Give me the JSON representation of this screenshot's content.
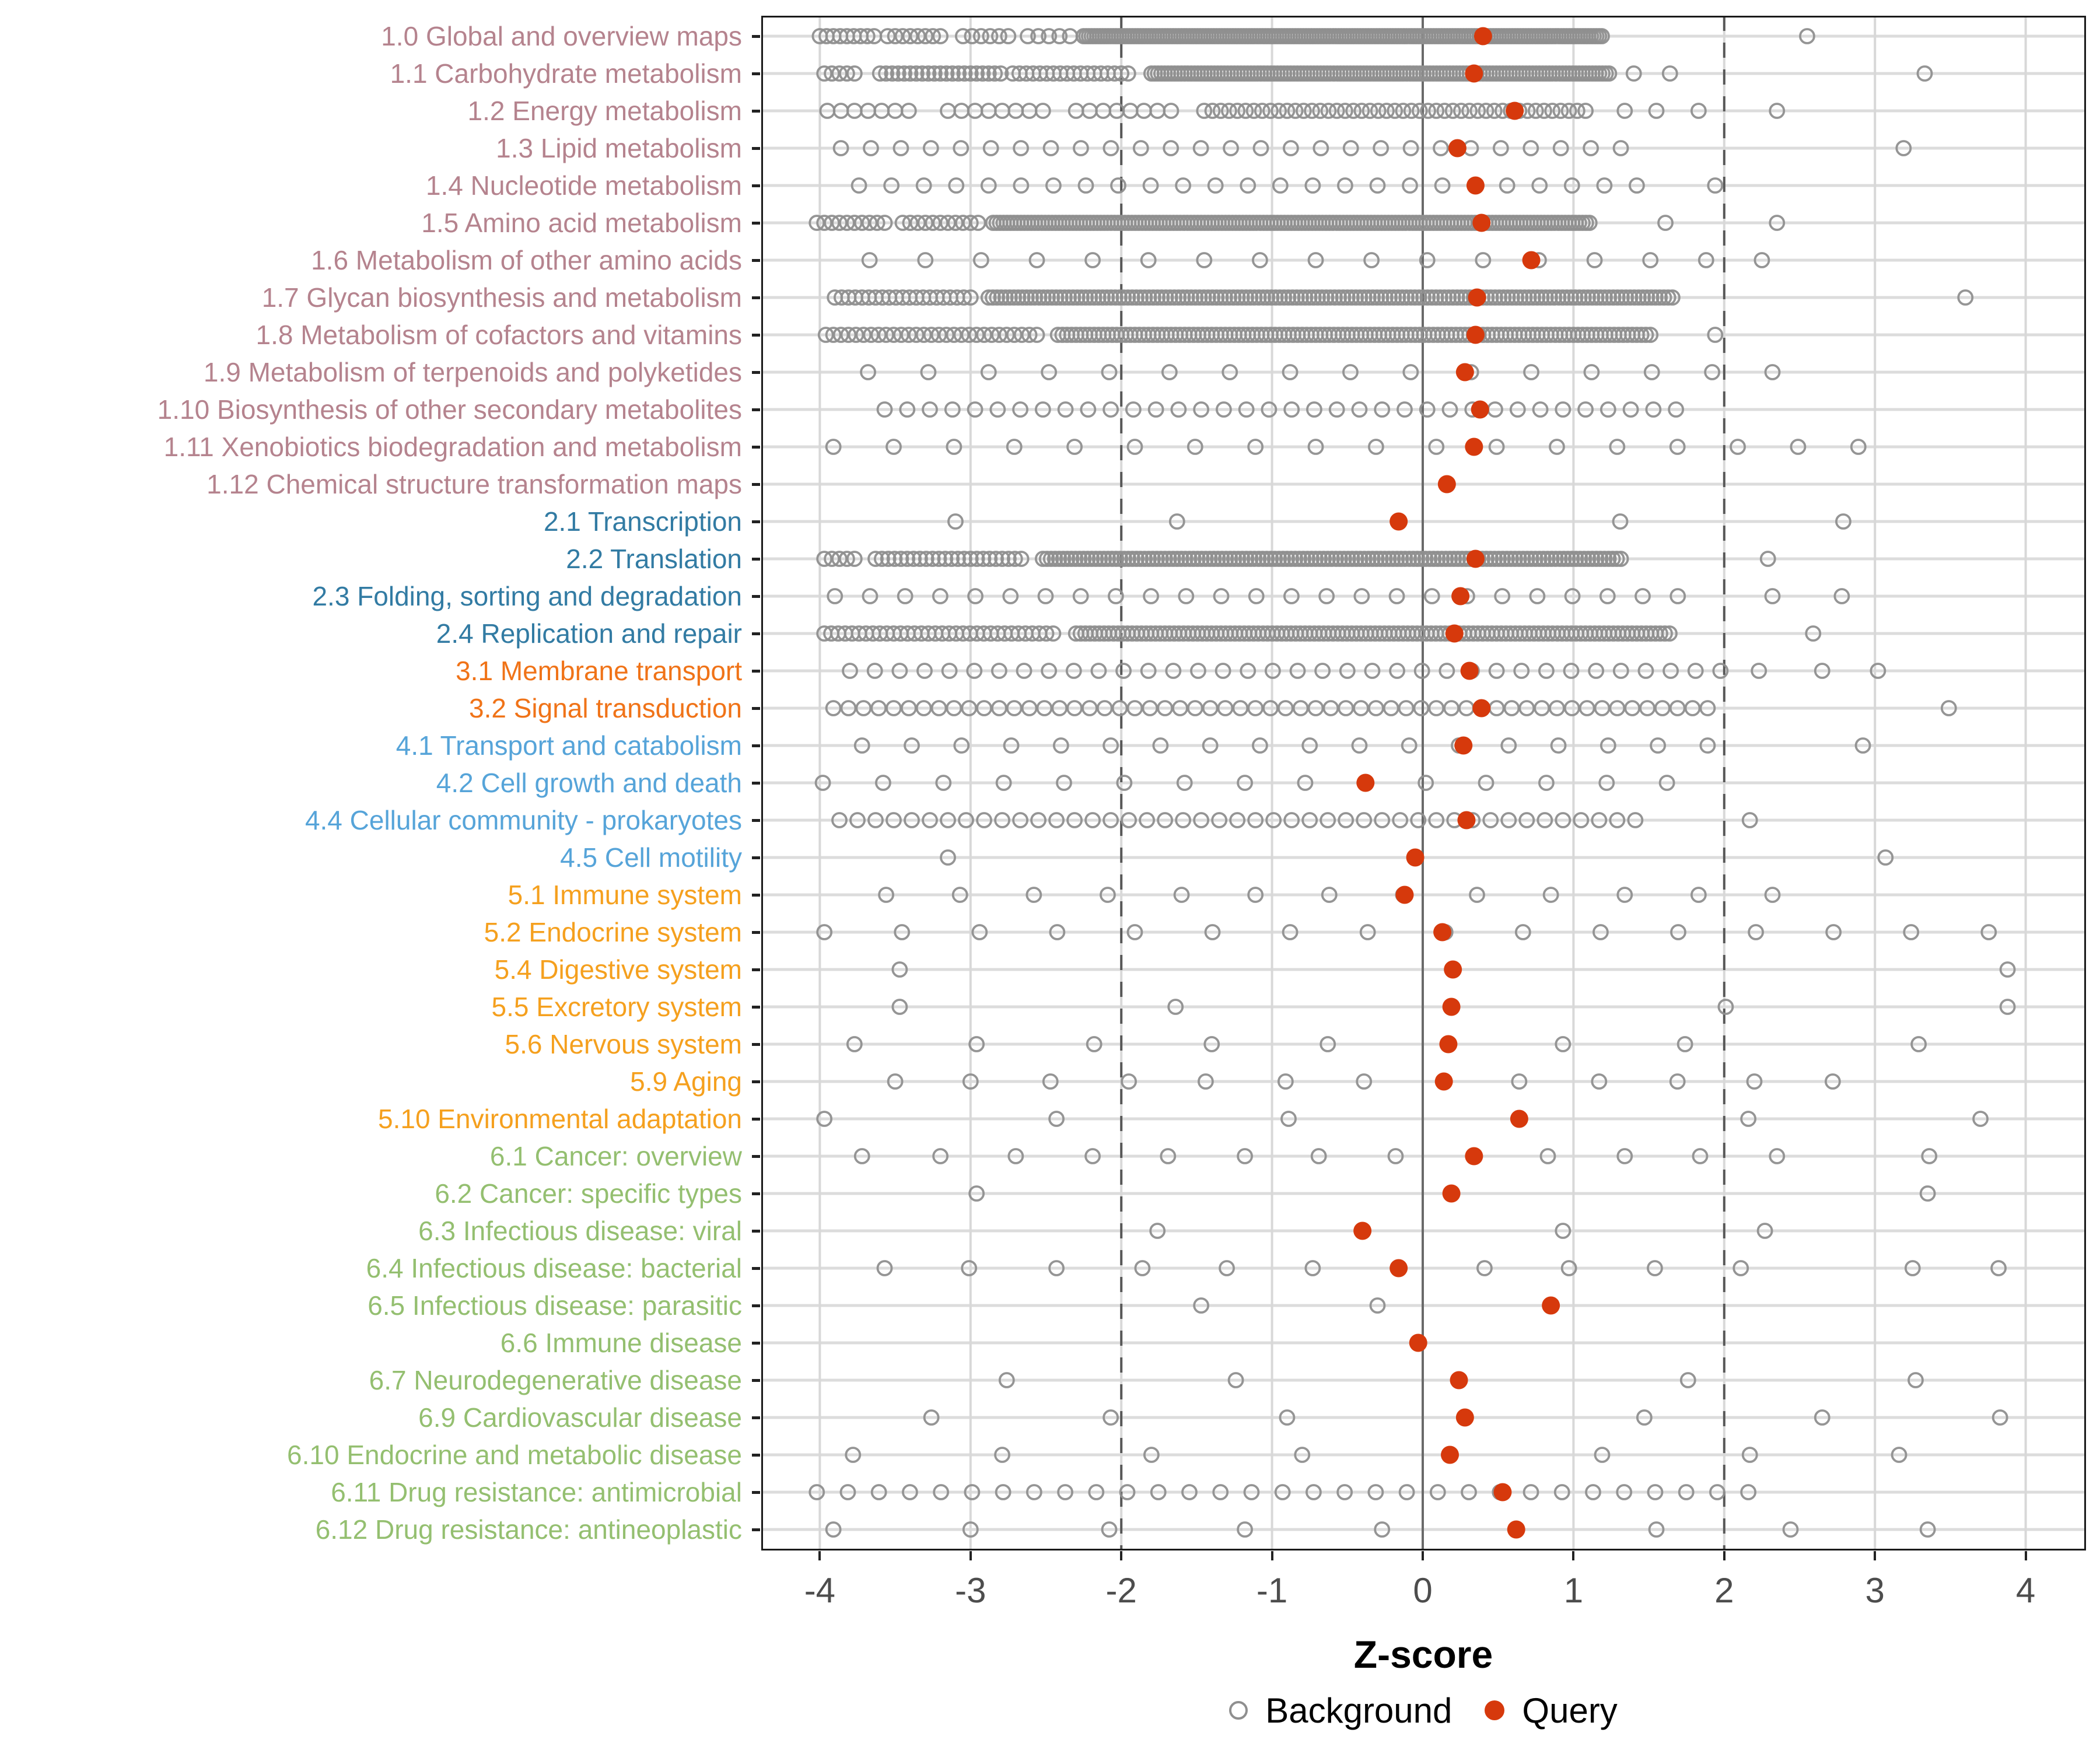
{
  "chart_data": {
    "type": "scatter",
    "title": "",
    "xlabel": "Z-score",
    "ylabel": "",
    "xlim": [
      -4.4,
      4.4
    ],
    "xticks": [
      -4,
      -3,
      -2,
      -1,
      0,
      1,
      2,
      3,
      4
    ],
    "ref_lines": {
      "solid_at": 0,
      "dashed_at": [
        -2,
        2
      ]
    },
    "grid": "on",
    "legend_position": "bottom",
    "legend": [
      {
        "label": "Background",
        "marker": "open-circle",
        "color": "#8f8f8f"
      },
      {
        "label": "Query",
        "marker": "filled-circle",
        "color": "#d6390c"
      }
    ],
    "colors": {
      "query_dot": "#d6390c",
      "background_circle": "#8f8f8f",
      "grid_horizontal": "#dcdcdc",
      "grid_vertical": "#d8d8d8",
      "zero_line": "#6a6a6a",
      "dashed_line": "#585858",
      "panel_border": "#1a1a1a",
      "tick_label": "#4d4d4d",
      "axis_tick": "#222222"
    },
    "group_colors": {
      "g1": "#b5838e",
      "g2": "#327ba3",
      "g3": "#f07318",
      "g4": "#56a4d9",
      "g5": "#f5a01e",
      "g6": "#94bf70"
    },
    "rows": [
      {
        "label": "1.0 Global and overview maps",
        "group": "g1",
        "query": 0.4,
        "bg_runs": [
          [
            -4.0,
            -3.62,
            0.045
          ],
          [
            -3.55,
            -3.2,
            0.05
          ],
          [
            -3.05,
            -2.7,
            0.06
          ],
          [
            -2.62,
            -2.3,
            0.07
          ],
          [
            -2.25,
            1.2,
            0.018
          ]
        ],
        "bg_points": [
          2.55
        ]
      },
      {
        "label": "1.1 Carbohydrate metabolism",
        "group": "g1",
        "query": 0.34,
        "bg_runs": [
          [
            -3.97,
            -3.75,
            0.05
          ],
          [
            -3.6,
            -2.8,
            0.04
          ],
          [
            -2.72,
            -1.95,
            0.045
          ],
          [
            -1.8,
            1.25,
            0.022
          ]
        ],
        "bg_points": [
          1.4,
          1.64,
          3.33
        ]
      },
      {
        "label": "1.2 Energy metabolism",
        "group": "g1",
        "query": 0.61,
        "bg_runs": [
          [
            -3.95,
            -3.4,
            0.09
          ],
          [
            -3.15,
            -2.5,
            0.09
          ],
          [
            -2.3,
            -1.65,
            0.09
          ],
          [
            -1.45,
            1.08,
            0.055
          ]
        ],
        "bg_points": [
          1.34,
          1.55,
          1.83,
          2.35
        ]
      },
      {
        "label": "1.3 Lipid metabolism",
        "group": "g1",
        "query": 0.23,
        "bg_runs": [
          [
            -3.86,
            1.32,
            0.199
          ]
        ],
        "bg_points": [
          3.19
        ]
      },
      {
        "label": "1.4 Nucleotide metabolism",
        "group": "g1",
        "query": 0.35,
        "bg_runs": [
          [
            -3.74,
            1.61,
            0.215
          ]
        ],
        "bg_points": [
          1.94
        ]
      },
      {
        "label": "1.5 Amino acid metabolism",
        "group": "g1",
        "query": 0.39,
        "bg_runs": [
          [
            -4.02,
            -3.55,
            0.05
          ],
          [
            -3.45,
            -2.95,
            0.05
          ],
          [
            -2.85,
            1.12,
            0.023
          ]
        ],
        "bg_points": [
          1.61,
          2.35
        ]
      },
      {
        "label": "1.6 Metabolism of other amino acids",
        "group": "g1",
        "query": 0.72,
        "bg_runs": [
          [
            -3.67,
            2.61,
            0.37
          ]
        ],
        "bg_points": []
      },
      {
        "label": "1.7 Glycan biosynthesis and metabolism",
        "group": "g1",
        "query": 0.36,
        "bg_runs": [
          [
            -3.9,
            -3.0,
            0.045
          ],
          [
            -2.88,
            1.67,
            0.028
          ]
        ],
        "bg_points": [
          3.6
        ]
      },
      {
        "label": "1.8 Metabolism of cofactors and vitamins",
        "group": "g1",
        "query": 0.35,
        "bg_runs": [
          [
            -3.96,
            -2.52,
            0.05
          ],
          [
            -2.42,
            1.51,
            0.03
          ]
        ],
        "bg_points": [
          1.94
        ]
      },
      {
        "label": "1.9 Metabolism of terpenoids and polyketides",
        "group": "g1",
        "query": 0.28,
        "bg_runs": [
          [
            -3.68,
            2.65,
            0.4
          ]
        ],
        "bg_points": []
      },
      {
        "label": "1.10 Biosynthesis of other secondary metabolites",
        "group": "g1",
        "query": 0.38,
        "bg_runs": [
          [
            -3.57,
            1.72,
            0.15
          ]
        ],
        "bg_points": []
      },
      {
        "label": "1.11 Xenobiotics biodegradation and metabolism",
        "group": "g1",
        "query": 0.34,
        "bg_runs": [
          [
            -3.91,
            3.02,
            0.4
          ]
        ],
        "bg_points": []
      },
      {
        "label": "1.12 Chemical structure transformation maps",
        "group": "g1",
        "query": 0.16,
        "bg_runs": [],
        "bg_points": []
      },
      {
        "label": "2.1 Transcription",
        "group": "g2",
        "query": -0.16,
        "bg_runs": [],
        "bg_points": [
          -3.1,
          -1.63,
          1.31,
          2.79
        ]
      },
      {
        "label": "2.2 Translation",
        "group": "g2",
        "query": 0.35,
        "bg_runs": [
          [
            -3.97,
            -3.77,
            0.05
          ],
          [
            -3.63,
            -2.65,
            0.042
          ],
          [
            -2.52,
            1.32,
            0.027
          ]
        ],
        "bg_points": [
          2.29
        ]
      },
      {
        "label": "2.3 Folding, sorting and degradation",
        "group": "g2",
        "query": 0.25,
        "bg_runs": [
          [
            -3.9,
            1.83,
            0.233
          ]
        ],
        "bg_points": [
          2.32,
          2.78
        ]
      },
      {
        "label": "2.4 Replication and repair",
        "group": "g2",
        "query": 0.21,
        "bg_runs": [
          [
            -3.97,
            -2.42,
            0.046
          ],
          [
            -2.3,
            1.66,
            0.031
          ]
        ],
        "bg_points": [
          2.59
        ]
      },
      {
        "label": "3.1 Membrane transport",
        "group": "g3",
        "query": 0.31,
        "bg_runs": [
          [
            -3.8,
            2.0,
            0.165
          ]
        ],
        "bg_points": [
          2.23,
          2.65,
          3.02
        ]
      },
      {
        "label": "3.2 Signal transduction",
        "group": "g3",
        "query": 0.39,
        "bg_runs": [
          [
            -3.91,
            1.89,
            0.1
          ]
        ],
        "bg_points": [
          3.49
        ]
      },
      {
        "label": "4.1 Transport and catabolism",
        "group": "g4",
        "query": 0.27,
        "bg_runs": [
          [
            -3.72,
            1.93,
            0.33
          ]
        ],
        "bg_points": [
          2.92
        ]
      },
      {
        "label": "4.2 Cell growth and death",
        "group": "g4",
        "query": -0.38,
        "bg_runs": [
          [
            -3.98,
            2.0,
            0.4
          ]
        ],
        "bg_points": []
      },
      {
        "label": "4.4 Cellular community - prokaryotes",
        "group": "g4",
        "query": 0.29,
        "bg_runs": [
          [
            -3.87,
            1.5,
            0.12
          ]
        ],
        "bg_points": [
          2.17
        ]
      },
      {
        "label": "4.5 Cell motility",
        "group": "g4",
        "query": -0.05,
        "bg_runs": [],
        "bg_points": [
          -3.15,
          3.07
        ]
      },
      {
        "label": "5.1 Immune system",
        "group": "g5",
        "query": -0.12,
        "bg_runs": [
          [
            -3.56,
            2.34,
            0.49
          ]
        ],
        "bg_points": []
      },
      {
        "label": "5.2 Endocrine system",
        "group": "g5",
        "query": 0.13,
        "bg_runs": [
          [
            -3.97,
            3.76,
            0.515
          ]
        ],
        "bg_points": []
      },
      {
        "label": "5.4 Digestive system",
        "group": "g5",
        "query": 0.2,
        "bg_runs": [],
        "bg_points": [
          -3.47,
          3.88
        ]
      },
      {
        "label": "5.5 Excretory system",
        "group": "g5",
        "query": 0.19,
        "bg_runs": [],
        "bg_points": [
          -3.47,
          -1.64,
          2.01,
          3.88
        ]
      },
      {
        "label": "5.6 Nervous system",
        "group": "g5",
        "query": 0.17,
        "bg_runs": [],
        "bg_points": [
          -3.77,
          -2.96,
          -2.18,
          -1.4,
          -0.63,
          0.93,
          1.74,
          3.29
        ]
      },
      {
        "label": "5.9 Aging",
        "group": "g5",
        "query": 0.14,
        "bg_runs": [],
        "bg_points": [
          -3.5,
          -3.0,
          -2.47,
          -1.95,
          -1.44,
          -0.91,
          -0.39,
          0.64,
          1.17,
          1.69,
          2.2,
          2.72
        ]
      },
      {
        "label": "5.10 Environmental adaptation",
        "group": "g5",
        "query": 0.64,
        "bg_runs": [],
        "bg_points": [
          -3.97,
          -2.43,
          -0.89,
          2.16,
          3.7
        ]
      },
      {
        "label": "6.1 Cancer: overview",
        "group": "g6",
        "query": 0.34,
        "bg_runs": [],
        "bg_points": [
          -3.72,
          -3.2,
          -2.7,
          -2.19,
          -1.69,
          -1.18,
          -0.69,
          -0.18,
          0.83,
          1.34,
          1.84,
          2.35,
          3.36
        ]
      },
      {
        "label": "6.2 Cancer: specific types",
        "group": "g6",
        "query": 0.19,
        "bg_runs": [],
        "bg_points": [
          -2.96,
          3.35
        ]
      },
      {
        "label": "6.3 Infectious disease: viral",
        "group": "g6",
        "query": -0.4,
        "bg_runs": [],
        "bg_points": [
          -1.76,
          0.93,
          2.27
        ]
      },
      {
        "label": "6.4 Infectious disease: bacterial",
        "group": "g6",
        "query": -0.16,
        "bg_runs": [],
        "bg_points": [
          -3.57,
          -3.01,
          -2.43,
          -1.86,
          -1.3,
          -0.73,
          0.41,
          0.97,
          1.54,
          2.11,
          3.25,
          3.82
        ]
      },
      {
        "label": "6.5 Infectious disease: parasitic",
        "group": "g6",
        "query": 0.85,
        "bg_runs": [],
        "bg_points": [
          -1.47,
          -0.3
        ]
      },
      {
        "label": "6.6 Immune disease",
        "group": "g6",
        "query": -0.03,
        "bg_runs": [],
        "bg_points": []
      },
      {
        "label": "6.7 Neurodegenerative disease",
        "group": "g6",
        "query": 0.24,
        "bg_runs": [],
        "bg_points": [
          -2.76,
          -1.24,
          1.76,
          3.27
        ]
      },
      {
        "label": "6.9 Cardiovascular disease",
        "group": "g6",
        "query": 0.28,
        "bg_runs": [],
        "bg_points": [
          -3.26,
          -2.07,
          -0.9,
          1.47,
          2.65,
          3.83
        ]
      },
      {
        "label": "6.10 Endocrine and metabolic disease",
        "group": "g6",
        "query": 0.18,
        "bg_runs": [],
        "bg_points": [
          -3.78,
          -2.79,
          -1.8,
          -0.8,
          1.19,
          2.17,
          3.16
        ]
      },
      {
        "label": "6.11 Drug resistance: antimicrobial",
        "group": "g6",
        "query": 0.53,
        "bg_runs": [
          [
            -4.02,
            2.17,
            0.206
          ]
        ],
        "bg_points": []
      },
      {
        "label": "6.12 Drug resistance: antineoplastic",
        "group": "g6",
        "query": 0.62,
        "bg_runs": [],
        "bg_points": [
          -3.91,
          -3.0,
          -2.08,
          -1.18,
          -0.27,
          1.55,
          2.44,
          3.35
        ]
      }
    ]
  }
}
